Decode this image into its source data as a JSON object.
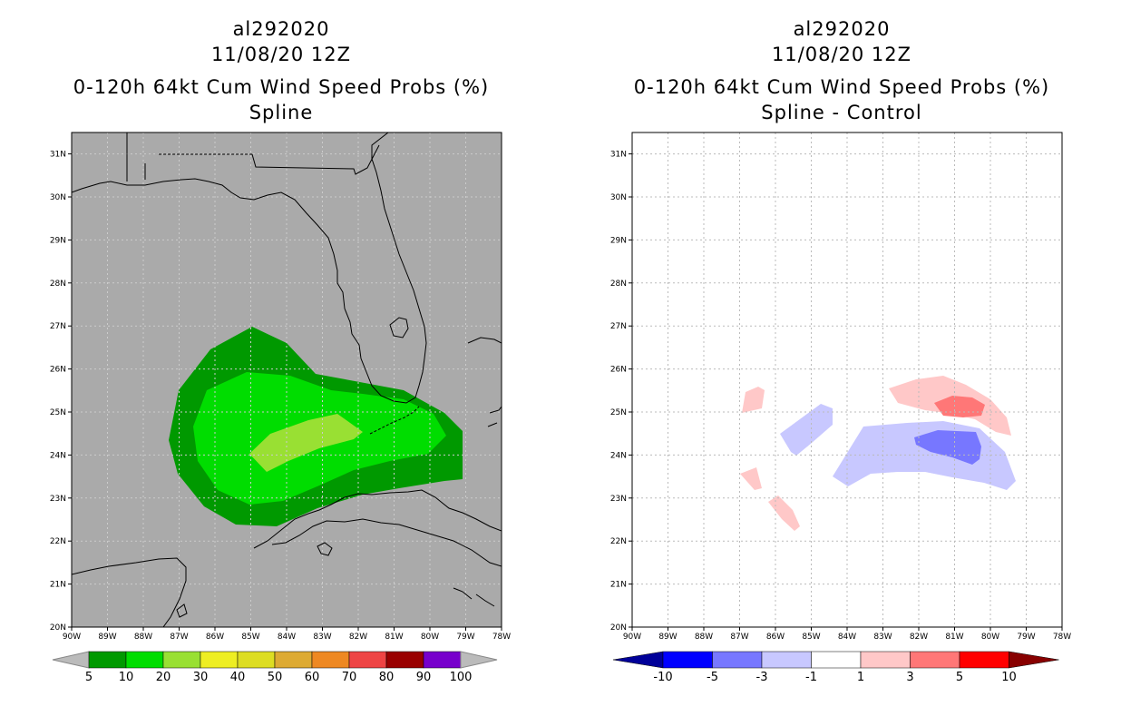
{
  "left": {
    "title": {
      "line1": "al292020",
      "line2": "11/08/20 12Z",
      "line3": "0-120h 64kt Cum Wind Speed Probs (%)",
      "line4": "Spline"
    },
    "background": "#aaaaaa",
    "colorbar": {
      "labels": [
        "5",
        "10",
        "20",
        "30",
        "40",
        "50",
        "60",
        "70",
        "80",
        "90",
        "100"
      ],
      "colors": [
        "#009900",
        "#00dd00",
        "#99e033",
        "#eeee22",
        "#dddd22",
        "#ddaa33",
        "#ee8822",
        "#ee4444",
        "#990000",
        "#7700cc"
      ],
      "end_color": "#bbbbbb"
    }
  },
  "right": {
    "title": {
      "line1": "al292020",
      "line2": "11/08/20 12Z",
      "line3": "0-120h 64kt Cum Wind Speed Probs (%)",
      "line4": "Spline - Control"
    },
    "background": "#ffffff",
    "colorbar": {
      "labels": [
        "-10",
        "-5",
        "-3",
        "-1",
        "1",
        "3",
        "5",
        "10"
      ],
      "colors": [
        "#0000ff",
        "#7777ff",
        "#c8c8ff",
        "#ffffff",
        "#ffc8c8",
        "#ff7777",
        "#ff0000"
      ],
      "end_left": "#000099",
      "end_right": "#880000"
    }
  },
  "axes": {
    "lon_labels": [
      "90W",
      "89W",
      "88W",
      "87W",
      "86W",
      "85W",
      "84W",
      "83W",
      "82W",
      "81W",
      "80W",
      "79W",
      "78W"
    ],
    "lat_labels": [
      "20N",
      "21N",
      "22N",
      "23N",
      "24N",
      "25N",
      "26N",
      "27N",
      "28N",
      "29N",
      "30N",
      "31N"
    ]
  },
  "colors": {
    "land_line": "#000000",
    "grid": "#aaaaaa"
  }
}
